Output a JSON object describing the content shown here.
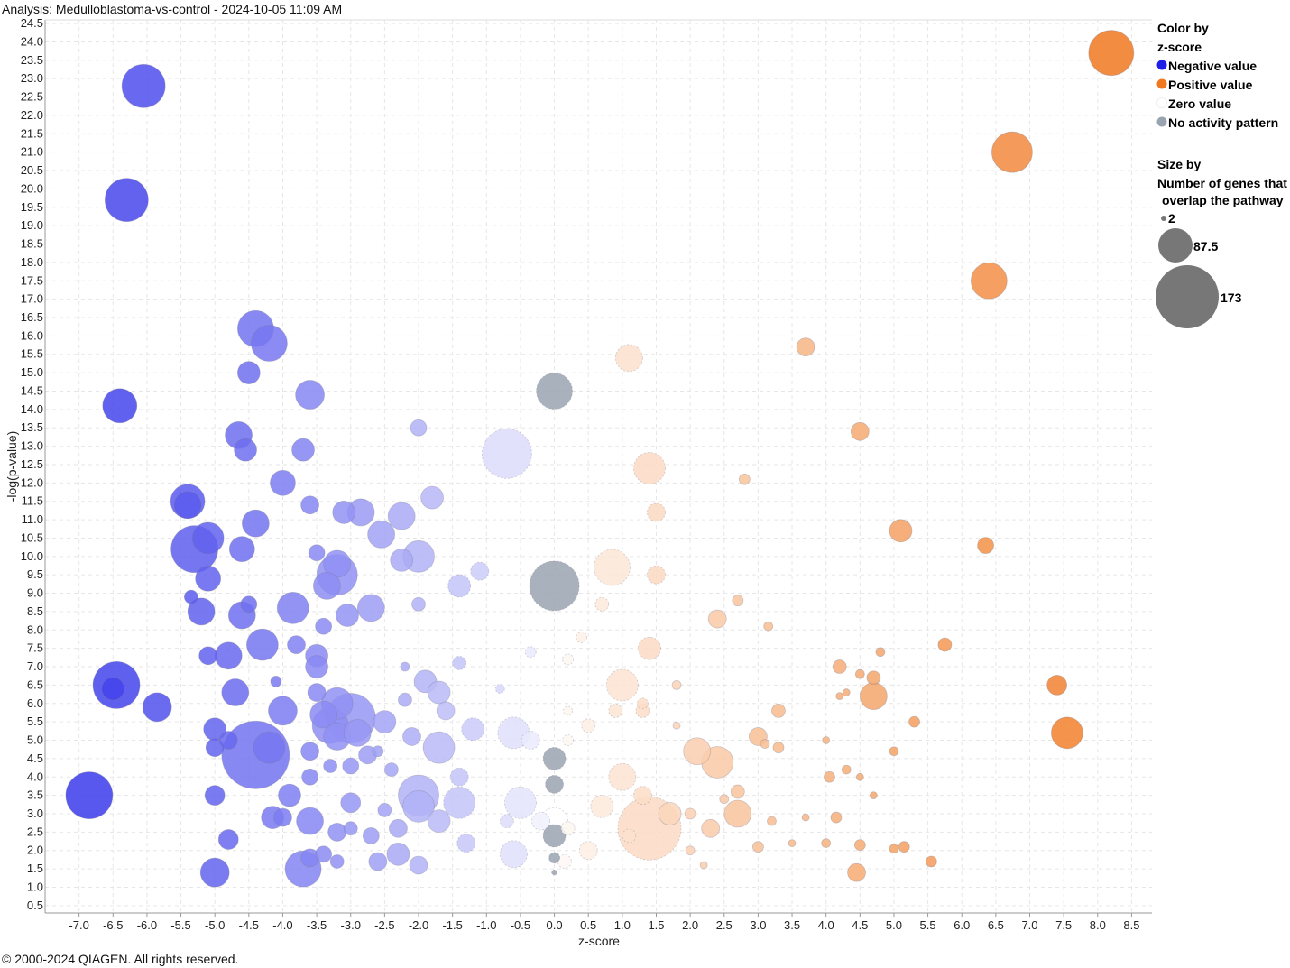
{
  "header": {
    "title": "Analysis: Medulloblastoma-vs-control - 2024-10-05 11:09 AM"
  },
  "footer": {
    "copyright": "© 2000-2024 QIAGEN. All rights reserved."
  },
  "legend": {
    "color_title_1": "Color by",
    "color_title_2": "z-score",
    "items": [
      {
        "label": "Negative value",
        "color": "#1f1fe8"
      },
      {
        "label": "Positive value",
        "color": "#f07820"
      },
      {
        "label": "Zero value",
        "color": "#ffffff"
      },
      {
        "label": "No activity pattern",
        "color": "#9aa3b0"
      }
    ],
    "size_title_1": "Size by",
    "size_title_2": "Number of genes that",
    "size_title_3": "overlap the pathway",
    "sizes": [
      {
        "label": "2",
        "value": 2
      },
      {
        "label": "87.5",
        "value": 87.5
      },
      {
        "label": "173",
        "value": 173
      }
    ]
  },
  "chart_data": {
    "type": "scatter",
    "xlabel": "z-score",
    "ylabel": "-log(p-value)",
    "xlim": [
      -7.5,
      8.8
    ],
    "ylim": [
      0.3,
      24.6
    ],
    "xticks": [
      -7.0,
      -6.5,
      -6.0,
      -5.5,
      -5.0,
      -4.5,
      -4.0,
      -3.5,
      -3.0,
      -2.5,
      -2.0,
      -1.5,
      -1.0,
      -0.5,
      0.0,
      0.5,
      1.0,
      1.5,
      2.0,
      2.5,
      3.0,
      3.5,
      4.0,
      4.5,
      5.0,
      5.5,
      6.0,
      6.5,
      7.0,
      7.5,
      8.0,
      8.5
    ],
    "yticks": [
      0.5,
      1.0,
      1.5,
      2.0,
      2.5,
      3.0,
      3.5,
      4.0,
      4.5,
      5.0,
      5.5,
      6.0,
      6.5,
      7.0,
      7.5,
      8.0,
      8.5,
      9.0,
      9.5,
      10.0,
      10.5,
      11.0,
      11.5,
      12.0,
      12.5,
      13.0,
      13.5,
      14.0,
      14.5,
      15.0,
      15.5,
      16.0,
      16.5,
      17.0,
      17.5,
      18.0,
      18.5,
      19.0,
      19.5,
      20.0,
      20.5,
      21.0,
      21.5,
      22.0,
      22.5,
      23.0,
      23.5,
      24.0,
      24.5
    ],
    "grid": true,
    "color_scale": {
      "negative": "#1f1fe8",
      "zero": "#ffffff",
      "positive": "#f07820",
      "none": "#9aa3b0",
      "zmax": 8.2
    },
    "size_field": "genes",
    "points": [
      {
        "x": 8.2,
        "y": 23.7,
        "size": 50
      },
      {
        "x": 6.74,
        "y": 21.0,
        "size": 45
      },
      {
        "x": 6.4,
        "y": 17.5,
        "size": 40
      },
      {
        "x": 3.7,
        "y": 15.7,
        "size": 20
      },
      {
        "x": 4.5,
        "y": 13.4,
        "size": 20
      },
      {
        "x": 2.8,
        "y": 12.1,
        "size": 12
      },
      {
        "x": 5.1,
        "y": 10.7,
        "size": 25
      },
      {
        "x": 6.35,
        "y": 10.3,
        "size": 18
      },
      {
        "x": 5.75,
        "y": 7.6,
        "size": 15
      },
      {
        "x": 7.4,
        "y": 6.5,
        "size": 22
      },
      {
        "x": 7.55,
        "y": 5.2,
        "size": 35
      },
      {
        "x": 4.7,
        "y": 6.2,
        "size": 30
      },
      {
        "x": 4.7,
        "y": 6.7,
        "size": 15
      },
      {
        "x": 4.8,
        "y": 7.4,
        "size": 10
      },
      {
        "x": 4.2,
        "y": 7.0,
        "size": 15
      },
      {
        "x": 4.5,
        "y": 6.8,
        "size": 10
      },
      {
        "x": 4.3,
        "y": 6.3,
        "size": 8
      },
      {
        "x": 4.2,
        "y": 6.2,
        "size": 8
      },
      {
        "x": 5.3,
        "y": 5.5,
        "size": 12
      },
      {
        "x": 5.0,
        "y": 4.7,
        "size": 10
      },
      {
        "x": 4.0,
        "y": 5.0,
        "size": 8
      },
      {
        "x": 4.3,
        "y": 4.2,
        "size": 10
      },
      {
        "x": 4.5,
        "y": 4.0,
        "size": 8
      },
      {
        "x": 4.05,
        "y": 4.0,
        "size": 12
      },
      {
        "x": 4.7,
        "y": 3.5,
        "size": 8
      },
      {
        "x": 3.3,
        "y": 5.8,
        "size": 15
      },
      {
        "x": 3.0,
        "y": 5.1,
        "size": 20
      },
      {
        "x": 3.3,
        "y": 4.8,
        "size": 12
      },
      {
        "x": 3.1,
        "y": 4.9,
        "size": 10
      },
      {
        "x": 2.1,
        "y": 4.7,
        "size": 30
      },
      {
        "x": 2.4,
        "y": 4.4,
        "size": 35
      },
      {
        "x": 3.7,
        "y": 2.9,
        "size": 8
      },
      {
        "x": 4.15,
        "y": 2.9,
        "size": 12
      },
      {
        "x": 4.45,
        "y": 1.4,
        "size": 20
      },
      {
        "x": 5.55,
        "y": 1.7,
        "size": 12
      },
      {
        "x": 5.15,
        "y": 2.1,
        "size": 12
      },
      {
        "x": 5.0,
        "y": 2.05,
        "size": 10
      },
      {
        "x": 4.5,
        "y": 2.15,
        "size": 12
      },
      {
        "x": 4.0,
        "y": 2.2,
        "size": 10
      },
      {
        "x": 3.5,
        "y": 2.2,
        "size": 8
      },
      {
        "x": 3.2,
        "y": 2.8,
        "size": 10
      },
      {
        "x": 3.0,
        "y": 2.1,
        "size": 12
      },
      {
        "x": 2.7,
        "y": 3.0,
        "size": 30
      },
      {
        "x": 2.7,
        "y": 3.6,
        "size": 15
      },
      {
        "x": 2.5,
        "y": 3.4,
        "size": 10
      },
      {
        "x": 2.3,
        "y": 2.6,
        "size": 20
      },
      {
        "x": 2.0,
        "y": 3.0,
        "size": 12
      },
      {
        "x": 2.0,
        "y": 2.0,
        "size": 10
      },
      {
        "x": 2.2,
        "y": 1.6,
        "size": 8
      },
      {
        "x": 1.4,
        "y": 2.6,
        "size": 70
      },
      {
        "x": 1.7,
        "y": 3.0,
        "size": 25
      },
      {
        "x": 1.3,
        "y": 3.5,
        "size": 20
      },
      {
        "x": 1.0,
        "y": 4.0,
        "size": 30
      },
      {
        "x": 0.7,
        "y": 3.2,
        "size": 25
      },
      {
        "x": 1.1,
        "y": 2.4,
        "size": 15
      },
      {
        "x": 1.4,
        "y": 12.4,
        "size": 35
      },
      {
        "x": 1.1,
        "y": 15.4,
        "size": 30
      },
      {
        "x": 1.5,
        "y": 11.2,
        "size": 20
      },
      {
        "x": 0.85,
        "y": 9.7,
        "size": 40
      },
      {
        "x": 1.5,
        "y": 9.5,
        "size": 20
      },
      {
        "x": 2.7,
        "y": 8.8,
        "size": 12
      },
      {
        "x": 2.4,
        "y": 8.3,
        "size": 20
      },
      {
        "x": 3.15,
        "y": 8.1,
        "size": 10
      },
      {
        "x": 0.7,
        "y": 8.7,
        "size": 15
      },
      {
        "x": 1.4,
        "y": 7.5,
        "size": 25
      },
      {
        "x": 0.4,
        "y": 7.8,
        "size": 12
      },
      {
        "x": 0.2,
        "y": 7.2,
        "size": 12
      },
      {
        "x": 1.0,
        "y": 6.5,
        "size": 35
      },
      {
        "x": 1.8,
        "y": 6.5,
        "size": 10
      },
      {
        "x": 1.3,
        "y": 6.0,
        "size": 12
      },
      {
        "x": 1.3,
        "y": 5.8,
        "size": 15
      },
      {
        "x": 0.9,
        "y": 5.8,
        "size": 15
      },
      {
        "x": 0.5,
        "y": 5.4,
        "size": 15
      },
      {
        "x": 1.8,
        "y": 5.4,
        "size": 8
      },
      {
        "x": 0.2,
        "y": 5.8,
        "size": 10
      },
      {
        "x": 0.2,
        "y": 5.0,
        "size": 12
      },
      {
        "x": 0.2,
        "y": 2.6,
        "size": 15
      },
      {
        "x": 0.0,
        "y": 2.8,
        "size": 30
      },
      {
        "x": 0.5,
        "y": 2.0,
        "size": 20
      },
      {
        "x": 0.15,
        "y": 1.7,
        "size": 15
      },
      {
        "x": 0.0,
        "y": 9.2,
        "size": 55
      },
      {
        "x": 0.0,
        "y": 14.5,
        "size": 40
      },
      {
        "x": 0.0,
        "y": 4.5,
        "size": 25
      },
      {
        "x": 0.0,
        "y": 3.8,
        "size": 20
      },
      {
        "x": 0.0,
        "y": 2.4,
        "size": 25
      },
      {
        "x": 0.0,
        "y": 1.8,
        "size": 12
      },
      {
        "x": 0.0,
        "y": 1.4,
        "size": 6
      },
      {
        "x": -0.7,
        "y": 12.8,
        "size": 55
      },
      {
        "x": -0.35,
        "y": 5.0,
        "size": 20
      },
      {
        "x": -0.6,
        "y": 5.2,
        "size": 35
      },
      {
        "x": -1.2,
        "y": 5.3,
        "size": 25
      },
      {
        "x": -1.4,
        "y": 4.0,
        "size": 20
      },
      {
        "x": -0.5,
        "y": 3.3,
        "size": 35
      },
      {
        "x": -0.7,
        "y": 2.8,
        "size": 15
      },
      {
        "x": -0.6,
        "y": 1.9,
        "size": 30
      },
      {
        "x": -0.2,
        "y": 2.8,
        "size": 20
      },
      {
        "x": -0.8,
        "y": 6.4,
        "size": 10
      },
      {
        "x": -0.35,
        "y": 7.4,
        "size": 12
      },
      {
        "x": -1.1,
        "y": 9.6,
        "size": 20
      },
      {
        "x": -1.4,
        "y": 9.2,
        "size": 25
      },
      {
        "x": -1.8,
        "y": 11.6,
        "size": 25
      },
      {
        "x": -2.0,
        "y": 13.5,
        "size": 18
      },
      {
        "x": -2.0,
        "y": 10.0,
        "size": 35
      },
      {
        "x": -2.0,
        "y": 8.7,
        "size": 15
      },
      {
        "x": -2.2,
        "y": 7.0,
        "size": 10
      },
      {
        "x": -1.4,
        "y": 7.1,
        "size": 15
      },
      {
        "x": -1.9,
        "y": 6.6,
        "size": 25
      },
      {
        "x": -1.7,
        "y": 6.3,
        "size": 25
      },
      {
        "x": -2.2,
        "y": 6.1,
        "size": 15
      },
      {
        "x": -1.6,
        "y": 5.8,
        "size": 20
      },
      {
        "x": -2.5,
        "y": 5.5,
        "size": 25
      },
      {
        "x": -2.1,
        "y": 5.1,
        "size": 20
      },
      {
        "x": -1.7,
        "y": 4.8,
        "size": 35
      },
      {
        "x": -2.0,
        "y": 3.5,
        "size": 45
      },
      {
        "x": -2.0,
        "y": 3.2,
        "size": 35
      },
      {
        "x": -1.4,
        "y": 3.3,
        "size": 35
      },
      {
        "x": -1.7,
        "y": 2.8,
        "size": 25
      },
      {
        "x": -1.3,
        "y": 2.2,
        "size": 20
      },
      {
        "x": -2.3,
        "y": 1.9,
        "size": 25
      },
      {
        "x": -2.0,
        "y": 1.6,
        "size": 20
      },
      {
        "x": -2.6,
        "y": 1.7,
        "size": 20
      },
      {
        "x": -2.3,
        "y": 2.6,
        "size": 20
      },
      {
        "x": -2.5,
        "y": 3.1,
        "size": 15
      },
      {
        "x": -2.7,
        "y": 2.4,
        "size": 18
      },
      {
        "x": -2.4,
        "y": 4.2,
        "size": 15
      },
      {
        "x": -2.6,
        "y": 4.7,
        "size": 12
      },
      {
        "x": -3.1,
        "y": 11.2,
        "size": 25
      },
      {
        "x": -2.85,
        "y": 11.2,
        "size": 30
      },
      {
        "x": -2.55,
        "y": 10.6,
        "size": 30
      },
      {
        "x": -2.25,
        "y": 11.1,
        "size": 30
      },
      {
        "x": -2.25,
        "y": 9.9,
        "size": 25
      },
      {
        "x": -2.7,
        "y": 8.6,
        "size": 30
      },
      {
        "x": -3.2,
        "y": 9.8,
        "size": 30
      },
      {
        "x": -3.2,
        "y": 9.5,
        "size": 45
      },
      {
        "x": -3.35,
        "y": 9.2,
        "size": 30
      },
      {
        "x": -3.5,
        "y": 10.1,
        "size": 18
      },
      {
        "x": -3.05,
        "y": 8.4,
        "size": 25
      },
      {
        "x": -3.4,
        "y": 8.1,
        "size": 18
      },
      {
        "x": -3.5,
        "y": 7.3,
        "size": 25
      },
      {
        "x": -3.5,
        "y": 7.0,
        "size": 25
      },
      {
        "x": -3.8,
        "y": 7.6,
        "size": 20
      },
      {
        "x": -3.6,
        "y": 14.4,
        "size": 32
      },
      {
        "x": -3.7,
        "y": 12.9,
        "size": 25
      },
      {
        "x": -3.6,
        "y": 11.4,
        "size": 20
      },
      {
        "x": -4.0,
        "y": 12.0,
        "size": 28
      },
      {
        "x": -3.85,
        "y": 8.6,
        "size": 35
      },
      {
        "x": -4.4,
        "y": 16.2,
        "size": 40
      },
      {
        "x": -4.2,
        "y": 15.8,
        "size": 40
      },
      {
        "x": -4.5,
        "y": 15.0,
        "size": 25
      },
      {
        "x": -4.65,
        "y": 13.3,
        "size": 30
      },
      {
        "x": -4.55,
        "y": 12.9,
        "size": 25
      },
      {
        "x": -4.4,
        "y": 10.9,
        "size": 30
      },
      {
        "x": -4.6,
        "y": 10.2,
        "size": 28
      },
      {
        "x": -4.5,
        "y": 8.7,
        "size": 18
      },
      {
        "x": -4.6,
        "y": 8.4,
        "size": 30
      },
      {
        "x": -4.3,
        "y": 7.6,
        "size": 35
      },
      {
        "x": -4.8,
        "y": 7.3,
        "size": 30
      },
      {
        "x": -5.1,
        "y": 7.3,
        "size": 20
      },
      {
        "x": -4.7,
        "y": 6.3,
        "size": 30
      },
      {
        "x": -4.1,
        "y": 6.6,
        "size": 12
      },
      {
        "x": -3.5,
        "y": 6.3,
        "size": 20
      },
      {
        "x": -4.0,
        "y": 5.8,
        "size": 32
      },
      {
        "x": -3.4,
        "y": 5.7,
        "size": 30
      },
      {
        "x": -3.2,
        "y": 6.0,
        "size": 35
      },
      {
        "x": -3.0,
        "y": 5.6,
        "size": 55
      },
      {
        "x": -3.3,
        "y": 5.4,
        "size": 40
      },
      {
        "x": -3.2,
        "y": 5.1,
        "size": 30
      },
      {
        "x": -2.9,
        "y": 5.2,
        "size": 30
      },
      {
        "x": -2.75,
        "y": 4.6,
        "size": 20
      },
      {
        "x": -3.0,
        "y": 4.3,
        "size": 18
      },
      {
        "x": -3.3,
        "y": 4.3,
        "size": 15
      },
      {
        "x": -3.6,
        "y": 4.7,
        "size": 20
      },
      {
        "x": -3.6,
        "y": 4.0,
        "size": 18
      },
      {
        "x": -4.4,
        "y": 4.6,
        "size": 75
      },
      {
        "x": -4.2,
        "y": 4.8,
        "size": 35
      },
      {
        "x": -5.0,
        "y": 5.3,
        "size": 25
      },
      {
        "x": -5.0,
        "y": 4.8,
        "size": 20
      },
      {
        "x": -4.8,
        "y": 5.0,
        "size": 20
      },
      {
        "x": -3.9,
        "y": 3.5,
        "size": 25
      },
      {
        "x": -4.15,
        "y": 2.9,
        "size": 25
      },
      {
        "x": -4.0,
        "y": 2.9,
        "size": 20
      },
      {
        "x": -3.6,
        "y": 2.8,
        "size": 30
      },
      {
        "x": -3.2,
        "y": 2.5,
        "size": 20
      },
      {
        "x": -3.0,
        "y": 3.3,
        "size": 22
      },
      {
        "x": -3.0,
        "y": 2.6,
        "size": 15
      },
      {
        "x": -3.4,
        "y": 1.9,
        "size": 18
      },
      {
        "x": -3.2,
        "y": 1.7,
        "size": 15
      },
      {
        "x": -3.6,
        "y": 1.8,
        "size": 20
      },
      {
        "x": -3.7,
        "y": 1.5,
        "size": 40
      },
      {
        "x": -4.8,
        "y": 2.3,
        "size": 22
      },
      {
        "x": -5.0,
        "y": 3.5,
        "size": 22
      },
      {
        "x": -5.0,
        "y": 1.4,
        "size": 32
      },
      {
        "x": -6.05,
        "y": 22.8,
        "size": 48
      },
      {
        "x": -6.3,
        "y": 19.7,
        "size": 48
      },
      {
        "x": -6.4,
        "y": 14.1,
        "size": 38
      },
      {
        "x": -5.4,
        "y": 11.5,
        "size": 38
      },
      {
        "x": -5.4,
        "y": 11.4,
        "size": 30
      },
      {
        "x": -5.3,
        "y": 10.2,
        "size": 52
      },
      {
        "x": -5.1,
        "y": 10.5,
        "size": 35
      },
      {
        "x": -5.1,
        "y": 9.4,
        "size": 28
      },
      {
        "x": -5.35,
        "y": 8.9,
        "size": 15
      },
      {
        "x": -5.2,
        "y": 8.5,
        "size": 30
      },
      {
        "x": -6.45,
        "y": 6.5,
        "size": 52
      },
      {
        "x": -6.5,
        "y": 6.4,
        "size": 25
      },
      {
        "x": -5.85,
        "y": 5.9,
        "size": 32
      },
      {
        "x": -6.85,
        "y": 3.5,
        "size": 52
      }
    ]
  }
}
